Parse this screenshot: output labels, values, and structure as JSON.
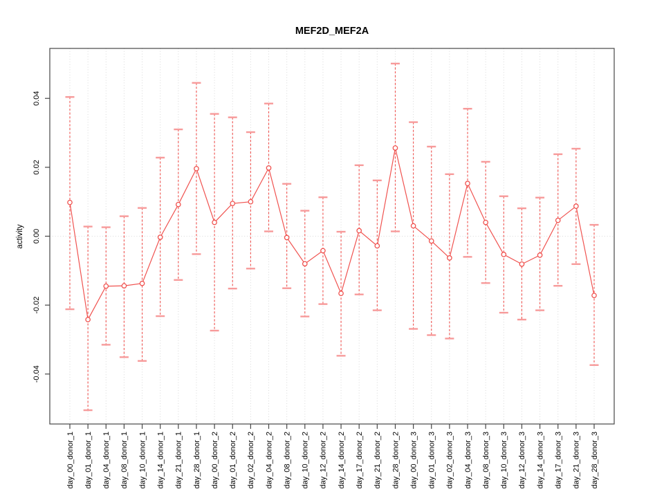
{
  "chart_data": {
    "type": "line",
    "subtype": "points-with-error-bars",
    "title": "MEF2D_MEF2A",
    "xlabel": "",
    "ylabel": "activity",
    "ylim": [
      -0.0545,
      0.0545
    ],
    "yticks": [
      -0.04,
      -0.02,
      0.0,
      0.02,
      0.04
    ],
    "grid": "vertical dotted gridline at each category; dotted horizontal line at y=0; no legend",
    "legend_position": "none",
    "categories": [
      "day_00_donor_1",
      "day_01_donor_1",
      "day_04_donor_1",
      "day_08_donor_1",
      "day_10_donor_1",
      "day_14_donor_1",
      "day_21_donor_1",
      "day_28_donor_1",
      "day_00_donor_2",
      "day_01_donor_2",
      "day_02_donor_2",
      "day_04_donor_2",
      "day_08_donor_2",
      "day_10_donor_2",
      "day_12_donor_2",
      "day_14_donor_2",
      "day_17_donor_2",
      "day_21_donor_2",
      "day_28_donor_2",
      "day_00_donor_3",
      "day_01_donor_3",
      "day_02_donor_3",
      "day_04_donor_3",
      "day_08_donor_3",
      "day_10_donor_3",
      "day_12_donor_3",
      "day_14_donor_3",
      "day_17_donor_3",
      "day_21_donor_3",
      "day_28_donor_3"
    ],
    "series": [
      {
        "name": "activity",
        "values": [
          0.0098,
          -0.0242,
          -0.0145,
          -0.0144,
          -0.0137,
          -0.0003,
          0.0092,
          0.0196,
          0.004,
          0.0095,
          0.01,
          0.0198,
          -0.0004,
          -0.008,
          -0.0042,
          -0.0166,
          0.0016,
          -0.0028,
          0.0256,
          0.003,
          -0.0014,
          -0.0063,
          0.0153,
          0.004,
          -0.0053,
          -0.0081,
          -0.0055,
          0.0046,
          0.0087,
          -0.0172
        ],
        "upper": [
          0.0404,
          0.0028,
          0.0026,
          0.0058,
          0.0082,
          0.0228,
          0.031,
          0.0445,
          0.0355,
          0.0345,
          0.0302,
          0.0385,
          0.0152,
          0.0074,
          0.0113,
          0.0013,
          0.0206,
          0.0162,
          0.0501,
          0.0331,
          0.026,
          0.018,
          0.037,
          0.0216,
          0.0116,
          0.0081,
          0.0112,
          0.0238,
          0.0254,
          0.0033
        ],
        "lower": [
          -0.0212,
          -0.0505,
          -0.0315,
          -0.0351,
          -0.0362,
          -0.0232,
          -0.0127,
          -0.0052,
          -0.0274,
          -0.0152,
          -0.0094,
          0.0014,
          -0.0151,
          -0.0233,
          -0.0197,
          -0.0347,
          -0.0169,
          -0.0215,
          0.0014,
          -0.0269,
          -0.0287,
          -0.0297,
          -0.006,
          -0.0136,
          -0.0222,
          -0.0242,
          -0.0215,
          -0.0144,
          -0.0081,
          -0.0374
        ]
      }
    ],
    "colors": {
      "line": "#f0524f",
      "marker_fill": "#ffffff",
      "error_cap": "#f79a9a",
      "grid": "#d8d8d8",
      "axis": "#454545",
      "text": "#000000",
      "background": "#ffffff"
    },
    "marker": "open-circle",
    "error_line_style": "dashed",
    "x_tick_label_rotation_deg": 90,
    "y_tick_label_rotation_deg": 90
  }
}
